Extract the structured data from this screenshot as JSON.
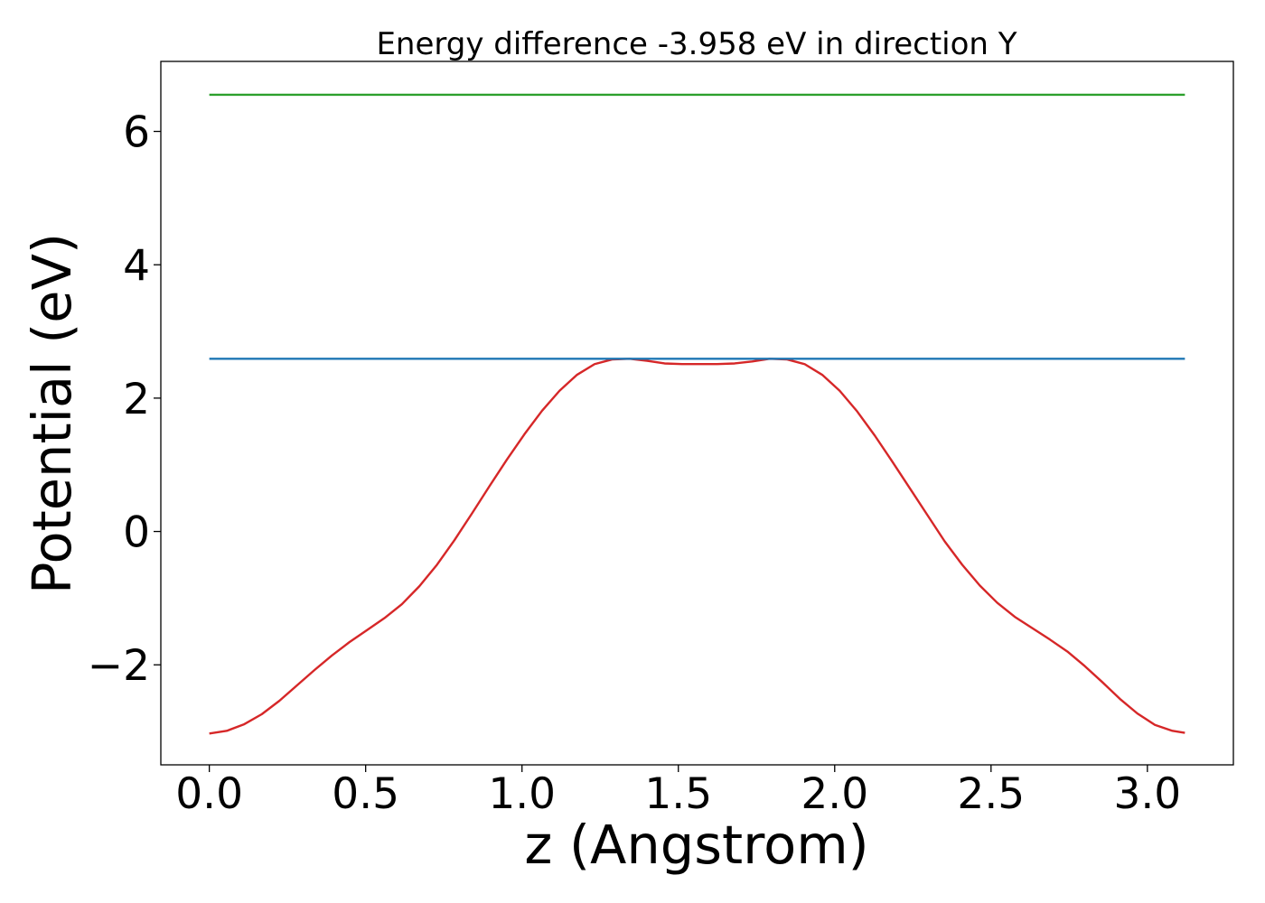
{
  "chart_data": {
    "type": "line",
    "title": "Energy difference -3.958 eV in direction Y",
    "xlabel": "z (Angstrom)",
    "ylabel": "Potential (eV)",
    "xlim": [
      -0.155,
      3.275
    ],
    "ylim": [
      -3.5,
      7.05
    ],
    "x_ticks": [
      0.0,
      0.5,
      1.0,
      1.5,
      2.0,
      2.5,
      3.0
    ],
    "x_tick_labels": [
      "0.0",
      "0.5",
      "1.0",
      "1.5",
      "2.0",
      "2.5",
      "3.0"
    ],
    "y_ticks": [
      -2,
      0,
      2,
      4,
      6
    ],
    "y_tick_labels": [
      "−2",
      "0",
      "2",
      "4",
      "6"
    ],
    "grid": false,
    "series": [
      {
        "color": "#d62728",
        "x": [
          0.0,
          0.056,
          0.112,
          0.168,
          0.224,
          0.28,
          0.336,
          0.392,
          0.448,
          0.504,
          0.56,
          0.616,
          0.672,
          0.728,
          0.784,
          0.84,
          0.896,
          0.952,
          1.008,
          1.064,
          1.12,
          1.176,
          1.232,
          1.288,
          1.344,
          1.4,
          1.456,
          1.512,
          1.568,
          1.624,
          1.68,
          1.736,
          1.792,
          1.848,
          1.904,
          1.96,
          2.016,
          2.072,
          2.128,
          2.184,
          2.24,
          2.296,
          2.352,
          2.408,
          2.464,
          2.52,
          2.576,
          2.632,
          2.688,
          2.744,
          2.8,
          2.856,
          2.912,
          2.968,
          3.024,
          3.08,
          3.12
        ],
        "y": [
          -3.03,
          -2.99,
          -2.89,
          -2.74,
          -2.54,
          -2.31,
          -2.08,
          -1.86,
          -1.66,
          -1.48,
          -1.3,
          -1.09,
          -0.82,
          -0.5,
          -0.13,
          0.27,
          0.68,
          1.08,
          1.46,
          1.81,
          2.11,
          2.35,
          2.51,
          2.58,
          2.59,
          2.56,
          2.52,
          2.51,
          2.51,
          2.51,
          2.52,
          2.55,
          2.59,
          2.58,
          2.51,
          2.35,
          2.11,
          1.8,
          1.44,
          1.05,
          0.65,
          0.25,
          -0.15,
          -0.5,
          -0.81,
          -1.07,
          -1.28,
          -1.45,
          -1.62,
          -1.8,
          -2.02,
          -2.26,
          -2.51,
          -2.73,
          -2.9,
          -2.99,
          -3.02
        ]
      },
      {
        "color": "#1f77b4",
        "x": [
          0.0,
          3.12
        ],
        "y": [
          2.59,
          2.59
        ]
      },
      {
        "color": "#2ca02c",
        "x": [
          0.0,
          3.12
        ],
        "y": [
          6.55,
          6.55
        ]
      }
    ]
  }
}
